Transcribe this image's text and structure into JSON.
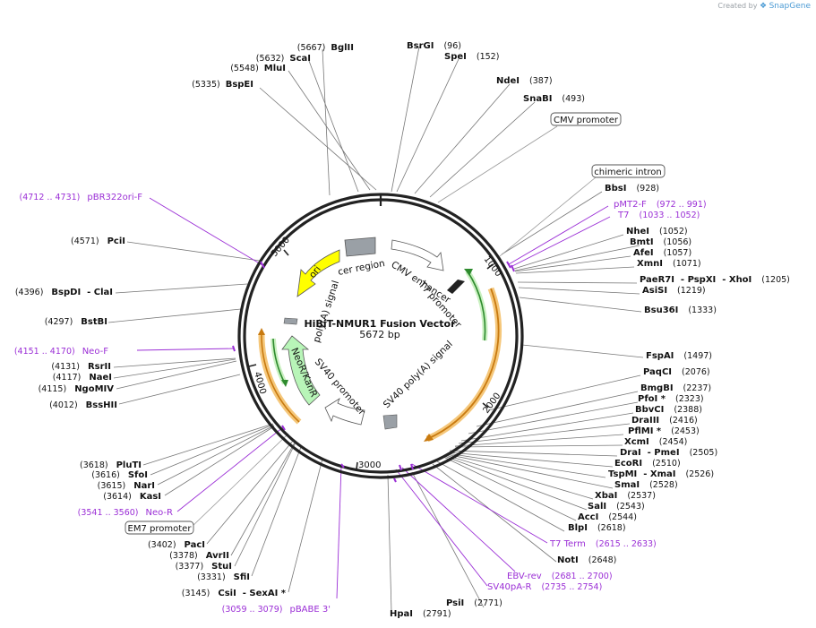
{
  "credit": {
    "prefix": "Created by",
    "brand": "SnapGene"
  },
  "plasmid": {
    "name": "HiBiT-NMUR1 Fusion Vector",
    "length_label": "5672 bp"
  },
  "ticks": [
    "1000",
    "2000",
    "3000",
    "4000",
    "5000"
  ],
  "sites": [
    {
      "name": "BglII",
      "pos": "(5667)"
    },
    {
      "name": "ScaI",
      "pos": "(5632)"
    },
    {
      "name": "MluI",
      "pos": "(5548)"
    },
    {
      "name": "BspEI",
      "pos": "(5335)"
    },
    {
      "name": "BsrGI",
      "pos": "(96)"
    },
    {
      "name": "SpeI",
      "pos": "(152)"
    },
    {
      "name": "NdeI",
      "pos": "(387)"
    },
    {
      "name": "SnaBI",
      "pos": "(493)"
    },
    {
      "name": "BbsI",
      "pos": "(928)"
    },
    {
      "name": "NheI",
      "pos": "(1052)"
    },
    {
      "name": "BmtI",
      "pos": "(1056)"
    },
    {
      "name": "AfeI",
      "pos": "(1057)"
    },
    {
      "name": "XmnI",
      "pos": "(1071)"
    },
    {
      "name": "PaeR7I  - PspXI  - XhoI",
      "pos": "(1205)"
    },
    {
      "name": "AsiSI",
      "pos": "(1219)"
    },
    {
      "name": "Bsu36I",
      "pos": "(1333)"
    },
    {
      "name": "FspAI",
      "pos": "(1497)"
    },
    {
      "name": "PaqCI",
      "pos": "(2076)"
    },
    {
      "name": "BmgBI",
      "pos": "(2237)"
    },
    {
      "name": "PfoI *",
      "pos": "(2323)"
    },
    {
      "name": "BbvCI",
      "pos": "(2388)"
    },
    {
      "name": "DraIII",
      "pos": "(2416)"
    },
    {
      "name": "PflMI *",
      "pos": "(2453)"
    },
    {
      "name": "XcmI",
      "pos": "(2454)"
    },
    {
      "name": "DraI  - PmeI",
      "pos": "(2505)"
    },
    {
      "name": "EcoRI",
      "pos": "(2510)"
    },
    {
      "name": "TspMI  - XmaI",
      "pos": "(2526)"
    },
    {
      "name": "SmaI",
      "pos": "(2528)"
    },
    {
      "name": "XbaI",
      "pos": "(2537)"
    },
    {
      "name": "SalI",
      "pos": "(2543)"
    },
    {
      "name": "AccI",
      "pos": "(2544)"
    },
    {
      "name": "BlpI",
      "pos": "(2618)"
    },
    {
      "name": "NotI",
      "pos": "(2648)"
    },
    {
      "name": "PsiI",
      "pos": "(2771)"
    },
    {
      "name": "HpaI",
      "pos": "(2791)"
    },
    {
      "name": "PciI",
      "pos": "(4571)"
    },
    {
      "name": "BspDI  - ClaI",
      "pos": "(4396)"
    },
    {
      "name": "BstBI",
      "pos": "(4297)"
    },
    {
      "name": "RsrII",
      "pos": "(4131)"
    },
    {
      "name": "NaeI",
      "pos": "(4117)"
    },
    {
      "name": "NgoMIV",
      "pos": "(4115)"
    },
    {
      "name": "BssHII",
      "pos": "(4012)"
    },
    {
      "name": "PluTI",
      "pos": "(3618)"
    },
    {
      "name": "SfoI",
      "pos": "(3616)"
    },
    {
      "name": "NarI",
      "pos": "(3615)"
    },
    {
      "name": "KasI",
      "pos": "(3614)"
    },
    {
      "name": "PacI",
      "pos": "(3402)"
    },
    {
      "name": "AvrII",
      "pos": "(3378)"
    },
    {
      "name": "StuI",
      "pos": "(3377)"
    },
    {
      "name": "SfiI",
      "pos": "(3331)"
    },
    {
      "name": "CsiI  - SexAI *",
      "pos": "(3145)"
    }
  ],
  "primers": [
    {
      "name": "pBR322ori-F",
      "pos": "(4712 .. 4731)"
    },
    {
      "name": "pMT2-F",
      "pos": "(972 .. 991)"
    },
    {
      "name": "T7",
      "pos": "(1033 .. 1052)"
    },
    {
      "name": "Neo-F",
      "pos": "(4151 .. 4170)"
    },
    {
      "name": "Neo-R",
      "pos": "(3541 .. 3560)"
    },
    {
      "name": "T7 Term",
      "pos": "(2615 .. 2633)"
    },
    {
      "name": "EBV-rev",
      "pos": "(2681 .. 2700)"
    },
    {
      "name": "SV40pA-R",
      "pos": "(2735 .. 2754)"
    },
    {
      "name": "pBABE 3'",
      "pos": "(3059 .. 3079)"
    }
  ],
  "boxed_features": [
    {
      "name": "CMV promoter"
    },
    {
      "name": "chimeric intron"
    },
    {
      "name": "EM7 promoter"
    }
  ],
  "inner_features": {
    "cmv_enhancer": "CMV enhancer",
    "t7_promoter": "T7 promoter",
    "sv40_polya": "SV40 poly(A) signal",
    "sv40_promoter": "SV40 promoter",
    "neo": "NeoR/KanR",
    "polya": "poly(A) signal",
    "ori": "ori",
    "cer": "cer region"
  },
  "colors": {
    "backbone": "#222222",
    "primer": "#9b2fd6",
    "hibit_orf": "#e8a23a",
    "green_arc": "#2e8b2e",
    "ori": "#ffff00",
    "neo": "#b8f5b8",
    "grey": "#9aa0a6"
  }
}
